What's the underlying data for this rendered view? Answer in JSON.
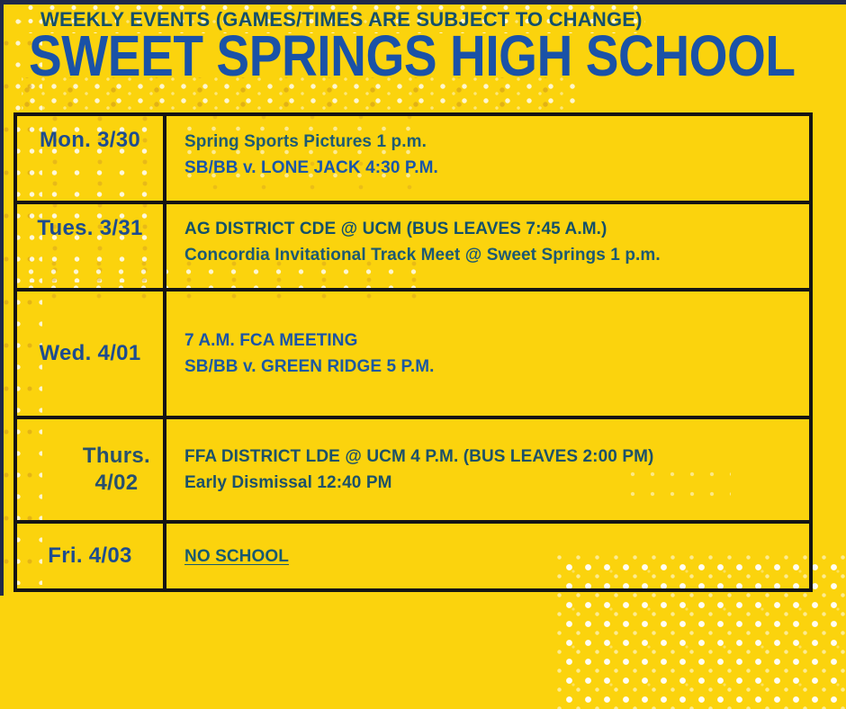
{
  "palette": {
    "background_yellow": "#FBD30D",
    "frame_navy": "#20294A",
    "title_blue": "#1A52A7",
    "eyebrow_teal": "#14506B",
    "table_border_black": "#141414",
    "day_blue": "#1D4C8F",
    "day_teal": "#27506E",
    "event_teal": "#1C5470",
    "event_blue": "#1956A8",
    "dot_white": "#FFFFFF",
    "dot_gold": "#D29E22"
  },
  "header": {
    "eyebrow": "WEEKLY EVENTS (GAMES/TIMES ARE SUBJECT TO CHANGE)",
    "title": "SWEET SPRINGS HIGH SCHOOL"
  },
  "schedule": {
    "rows": [
      {
        "day": "Mon.  3/30",
        "day_color": "#1D4C8F",
        "events": [
          {
            "text": "Spring Sports Pictures 1 p.m.",
            "color": "#1D5B73"
          },
          {
            "text": "SB/BB v. LONE JACK 4:30 P.M.",
            "color": "#1956A8"
          }
        ]
      },
      {
        "day": "Tues. 3/31",
        "day_color": "#1D4C8F",
        "events": [
          {
            "text": "AG DISTRICT CDE @ UCM (BUS LEAVES 7:45 A.M.)",
            "color": "#135169"
          },
          {
            "text": "Concordia Invitational Track Meet @ Sweet Springs 1 p.m.",
            "color": "#1C5973"
          }
        ]
      },
      {
        "day": "Wed. 4/01",
        "day_color": "#1D4C8F",
        "events": [
          {
            "text": "7 A.M. FCA MEETING",
            "color": "#1A54A6"
          },
          {
            "text": "SB/BB v. GREEN RIDGE 5 P.M.",
            "color": "#1C59A0"
          }
        ]
      },
      {
        "day": "Thurs.\n4/02",
        "day_color": "#27506E",
        "events": [
          {
            "text": "FFA DISTRICT LDE @ UCM 4 P.M. (BUS LEAVES 2:00 PM)",
            "color": "#1C5169"
          },
          {
            "text": "Early Dismissal 12:40 PM",
            "color": "#1C5169"
          }
        ]
      },
      {
        "day": "Fri. 4/03",
        "day_color": "#1D4C8F",
        "events": [
          {
            "text": "NO SCHOOL",
            "color": "#175A70",
            "decoration": "underline"
          }
        ]
      }
    ]
  }
}
